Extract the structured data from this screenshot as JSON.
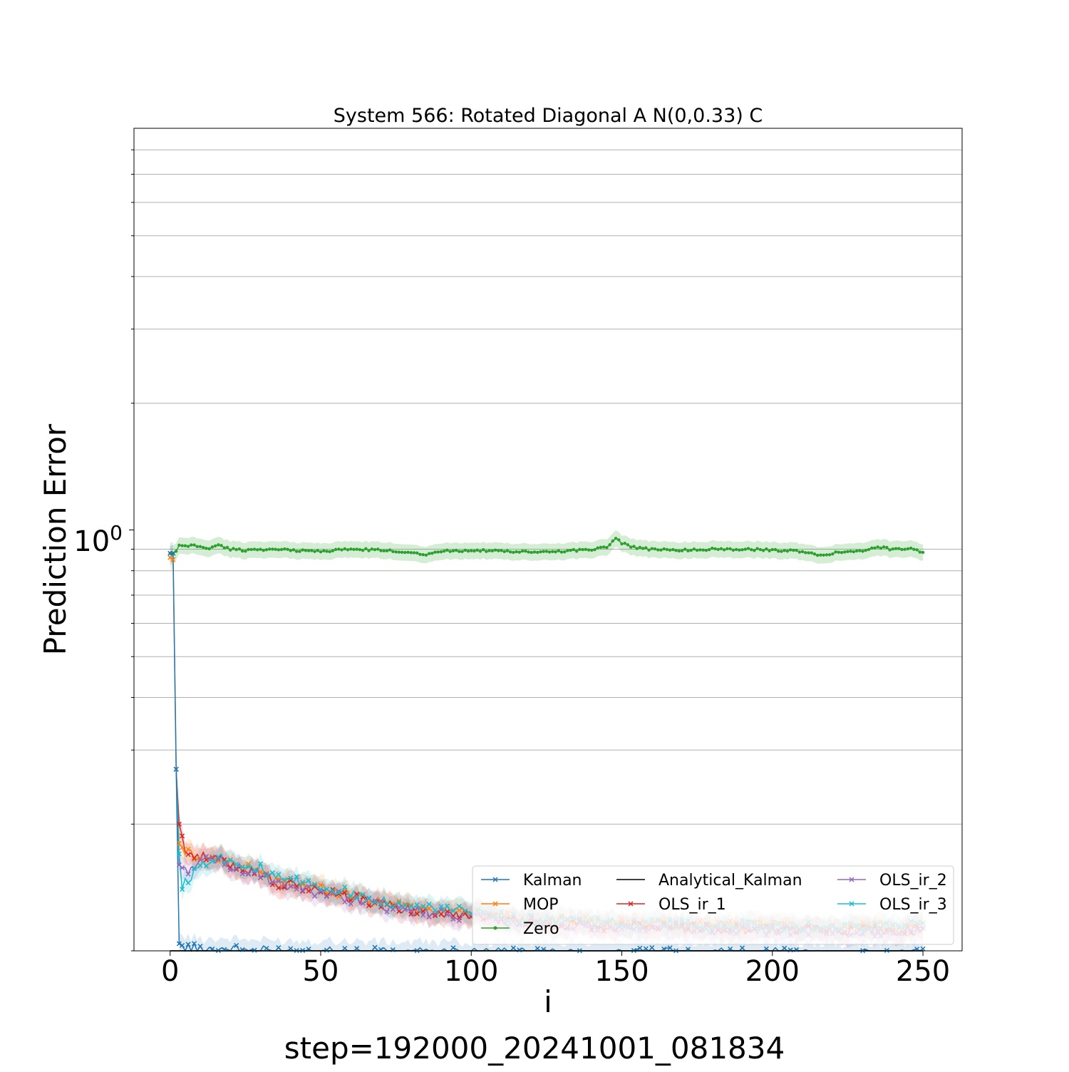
{
  "chart_data": {
    "type": "line",
    "title": "System 566: Rotated Diagonal A N(0,0.33) C",
    "xlabel": "i",
    "ylabel": "Prediction Error",
    "footer": "step=192000_20241001_081834",
    "y_scale": "log",
    "xlim": [
      -12,
      263
    ],
    "ylim": [
      0.1,
      9.0
    ],
    "x_ticks": [
      0,
      50,
      100,
      150,
      200,
      250
    ],
    "x_tick_labels": [
      "0",
      "50",
      "100",
      "150",
      "200",
      "250"
    ],
    "y_tick_major": {
      "value": 1.0,
      "base": "10",
      "exponent": "0"
    },
    "y_gridlines": [
      0.1,
      0.2,
      0.3,
      0.4,
      0.5,
      0.6,
      0.7,
      0.8,
      0.9,
      2,
      3,
      4,
      5,
      6,
      7,
      8
    ],
    "grid": "horizontal",
    "legend": {
      "position": "lower-right",
      "columns": 3
    },
    "series": [
      {
        "name": "Kalman",
        "color": "#1f77b4",
        "marker": "x",
        "x": [
          0,
          1,
          2,
          3,
          5,
          10,
          20,
          30,
          50,
          75,
          100,
          125,
          150,
          175,
          200,
          225,
          250
        ],
        "y": [
          0.88,
          0.88,
          0.27,
          0.104,
          0.102,
          0.101,
          0.101,
          0.1,
          0.1,
          0.099,
          0.099,
          0.099,
          0.099,
          0.099,
          0.099,
          0.098,
          0.099
        ]
      },
      {
        "name": "Analytical_Kalman",
        "color": "#000000",
        "marker": "none",
        "x": [
          0,
          250
        ],
        "y": [
          0.1,
          0.1
        ]
      },
      {
        "name": "OLS_ir_2",
        "color": "#9467bd",
        "marker": "x",
        "x": [
          2,
          3,
          5,
          10,
          15,
          20,
          25,
          30,
          35,
          40,
          50,
          60,
          70,
          80,
          90,
          100,
          110,
          120,
          140,
          160,
          180,
          200,
          220,
          240,
          250
        ],
        "y": [
          0.27,
          0.16,
          0.155,
          0.162,
          0.165,
          0.16,
          0.155,
          0.152,
          0.143,
          0.142,
          0.138,
          0.133,
          0.128,
          0.124,
          0.122,
          0.121,
          0.118,
          0.116,
          0.114,
          0.113,
          0.112,
          0.112,
          0.111,
          0.111,
          0.112
        ]
      },
      {
        "name": "MOP",
        "color": "#ff7f0e",
        "marker": "x",
        "x": [
          0,
          1,
          2,
          3,
          5,
          10,
          15,
          20,
          25,
          30,
          35,
          40,
          50,
          60,
          70,
          80,
          90,
          100,
          110,
          120,
          140,
          160,
          180,
          200,
          220,
          240,
          250
        ],
        "y": [
          0.86,
          0.85,
          0.27,
          0.18,
          0.172,
          0.168,
          0.166,
          0.162,
          0.158,
          0.154,
          0.146,
          0.145,
          0.141,
          0.136,
          0.131,
          0.127,
          0.125,
          0.124,
          0.121,
          0.119,
          0.117,
          0.116,
          0.115,
          0.115,
          0.114,
          0.114,
          0.115
        ]
      },
      {
        "name": "OLS_ir_1",
        "color": "#d62728",
        "marker": "x",
        "x": [
          2,
          3,
          5,
          10,
          15,
          20,
          25,
          30,
          35,
          40,
          50,
          60,
          70,
          80,
          90,
          100,
          110,
          120,
          140,
          160,
          180,
          200,
          220,
          240,
          250
        ],
        "y": [
          0.27,
          0.2,
          0.175,
          0.167,
          0.166,
          0.162,
          0.157,
          0.153,
          0.144,
          0.143,
          0.139,
          0.134,
          0.129,
          0.125,
          0.123,
          0.122,
          0.119,
          0.117,
          0.115,
          0.114,
          0.113,
          0.113,
          0.112,
          0.112,
          0.113
        ]
      },
      {
        "name": "Zero",
        "color": "#2ca02c",
        "marker": "dot",
        "x": [
          0,
          1,
          2,
          3,
          5,
          8,
          10,
          13,
          16,
          20,
          25,
          30,
          40,
          50,
          60,
          70,
          80,
          85,
          90,
          100,
          110,
          120,
          130,
          140,
          145,
          148,
          150,
          155,
          160,
          170,
          180,
          190,
          200,
          210,
          215,
          220,
          225,
          230,
          235,
          240,
          245,
          250
        ],
        "y": [
          0.88,
          0.88,
          0.89,
          0.92,
          0.915,
          0.92,
          0.91,
          0.905,
          0.92,
          0.9,
          0.895,
          0.9,
          0.895,
          0.89,
          0.9,
          0.895,
          0.885,
          0.875,
          0.89,
          0.895,
          0.89,
          0.885,
          0.89,
          0.9,
          0.91,
          0.96,
          0.93,
          0.905,
          0.9,
          0.895,
          0.9,
          0.9,
          0.895,
          0.89,
          0.87,
          0.88,
          0.89,
          0.895,
          0.91,
          0.9,
          0.905,
          0.885
        ]
      },
      {
        "name": "OLS_ir_3",
        "color": "#17becf",
        "marker": "x",
        "x": [
          2,
          3,
          4,
          5,
          10,
          15,
          20,
          25,
          30,
          35,
          40,
          50,
          60,
          70,
          80,
          90,
          100,
          110,
          120,
          140,
          160,
          180,
          200,
          220,
          240,
          250
        ],
        "y": [
          0.27,
          0.17,
          0.14,
          0.145,
          0.16,
          0.168,
          0.165,
          0.16,
          0.157,
          0.148,
          0.147,
          0.142,
          0.137,
          0.132,
          0.127,
          0.125,
          0.124,
          0.121,
          0.119,
          0.117,
          0.116,
          0.115,
          0.115,
          0.114,
          0.114,
          0.115
        ]
      }
    ]
  }
}
